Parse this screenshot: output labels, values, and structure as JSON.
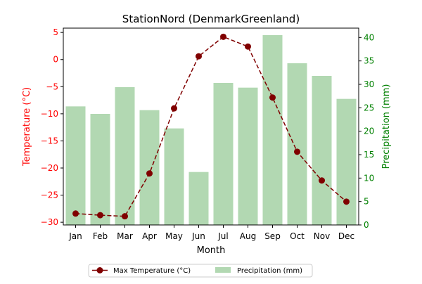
{
  "chart_data": {
    "type": "bar+line",
    "title": "StationNord (DenmarkGreenland)",
    "xlabel": "Month",
    "categories": [
      "Jan",
      "Feb",
      "Mar",
      "Apr",
      "May",
      "Jun",
      "Jul",
      "Aug",
      "Sep",
      "Oct",
      "Nov",
      "Dec"
    ],
    "left_axis": {
      "label": "Temperature (°C)",
      "ylim": [
        -30.5,
        5.8
      ],
      "ticks": [
        -30,
        -25,
        -20,
        -15,
        -10,
        -5,
        0,
        5
      ],
      "color": "#ff0000"
    },
    "right_axis": {
      "label": "Precipitation (mm)",
      "ylim": [
        0,
        42
      ],
      "ticks": [
        0,
        5,
        10,
        15,
        20,
        25,
        30,
        35,
        40
      ],
      "color": "#008000"
    },
    "series": [
      {
        "name": "Max Temperature (°C)",
        "type": "line",
        "axis": "left",
        "color": "#800000",
        "values": [
          -28.4,
          -28.7,
          -28.9,
          -21.0,
          -9.0,
          0.6,
          4.2,
          2.4,
          -7.0,
          -17.0,
          -22.3,
          -26.2
        ]
      },
      {
        "name": "Precipitation (mm)",
        "type": "bar",
        "axis": "right",
        "color": "#b2d8b2",
        "values": [
          25.3,
          23.7,
          29.4,
          24.5,
          20.6,
          11.3,
          30.3,
          29.3,
          40.5,
          34.5,
          31.8,
          26.9
        ]
      }
    ],
    "legend": {
      "placement": "bottom-center",
      "columns": 2
    },
    "grid": false
  }
}
